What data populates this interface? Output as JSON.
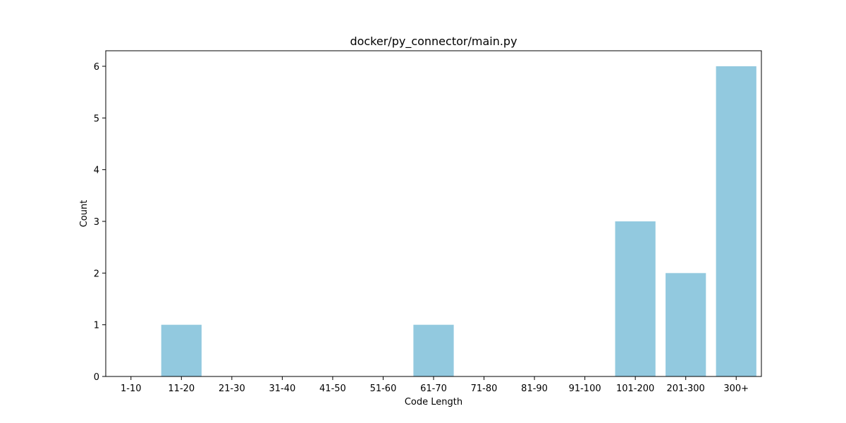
{
  "chart_data": {
    "type": "bar",
    "title": "docker/py_connector/main.py",
    "xlabel": "Code Length",
    "ylabel": "Count",
    "categories": [
      "1-10",
      "11-20",
      "21-30",
      "31-40",
      "41-50",
      "51-60",
      "61-70",
      "71-80",
      "81-90",
      "91-100",
      "101-200",
      "201-300",
      "300+"
    ],
    "values": [
      0,
      1,
      0,
      0,
      0,
      0,
      1,
      0,
      0,
      0,
      3,
      2,
      6
    ],
    "ylim": [
      0,
      6.3
    ],
    "yticks": [
      0,
      1,
      2,
      3,
      4,
      5,
      6
    ],
    "grid": false,
    "legend": "none",
    "bar_color": "#92c9df"
  }
}
